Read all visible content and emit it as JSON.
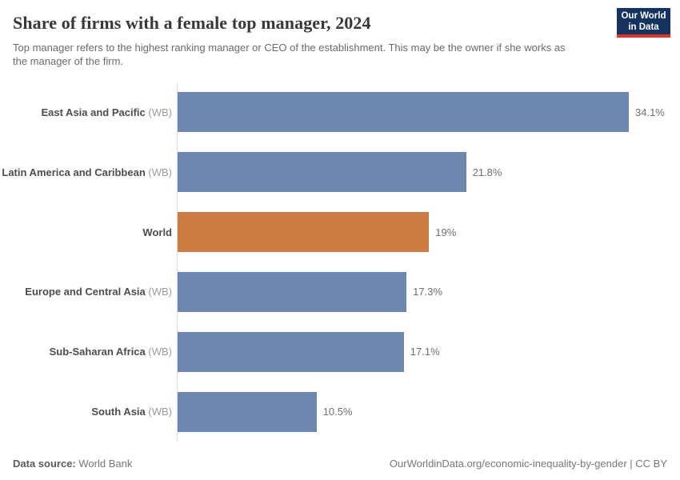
{
  "header": {
    "title": "Share of firms with a female top manager, 2024",
    "subtitle": "Top manager refers to the highest ranking manager or CEO of the establishment. This may be the owner if she works as the manager of the firm.",
    "logo": {
      "line1": "Our World",
      "line2": "in Data",
      "bg_color": "#153360",
      "accent_color": "#e0332c"
    }
  },
  "chart_data": {
    "type": "bar",
    "orientation": "horizontal",
    "title": "Share of firms with a female top manager, 2024",
    "categories": [
      "East Asia and Pacific",
      "Latin America and Caribbean",
      "World",
      "Europe and Central Asia",
      "Sub-Saharan Africa",
      "South Asia"
    ],
    "category_suffixes": [
      "(WB)",
      "(WB)",
      "",
      "(WB)",
      "(WB)",
      "(WB)"
    ],
    "values": [
      34.1,
      21.8,
      19,
      17.3,
      17.1,
      10.5
    ],
    "value_labels": [
      "34.1%",
      "21.8%",
      "19%",
      "17.3%",
      "17.1%",
      "10.5%"
    ],
    "xlim": [
      0,
      34.1
    ],
    "grid": false,
    "legend": "none",
    "bar_colors": [
      "#6e87ae",
      "#6e87ae",
      "#ce7b43",
      "#6e87ae",
      "#6e87ae",
      "#6e87ae"
    ],
    "default_bar_color": "#6e87ae",
    "highlight_bar_color": "#ce7b43",
    "axis_line_color": "#dadada"
  },
  "footer": {
    "source_label": "Data source:",
    "source_value": "World Bank",
    "link": "OurWorldinData.org/economic-inequality-by-gender | CC BY"
  }
}
